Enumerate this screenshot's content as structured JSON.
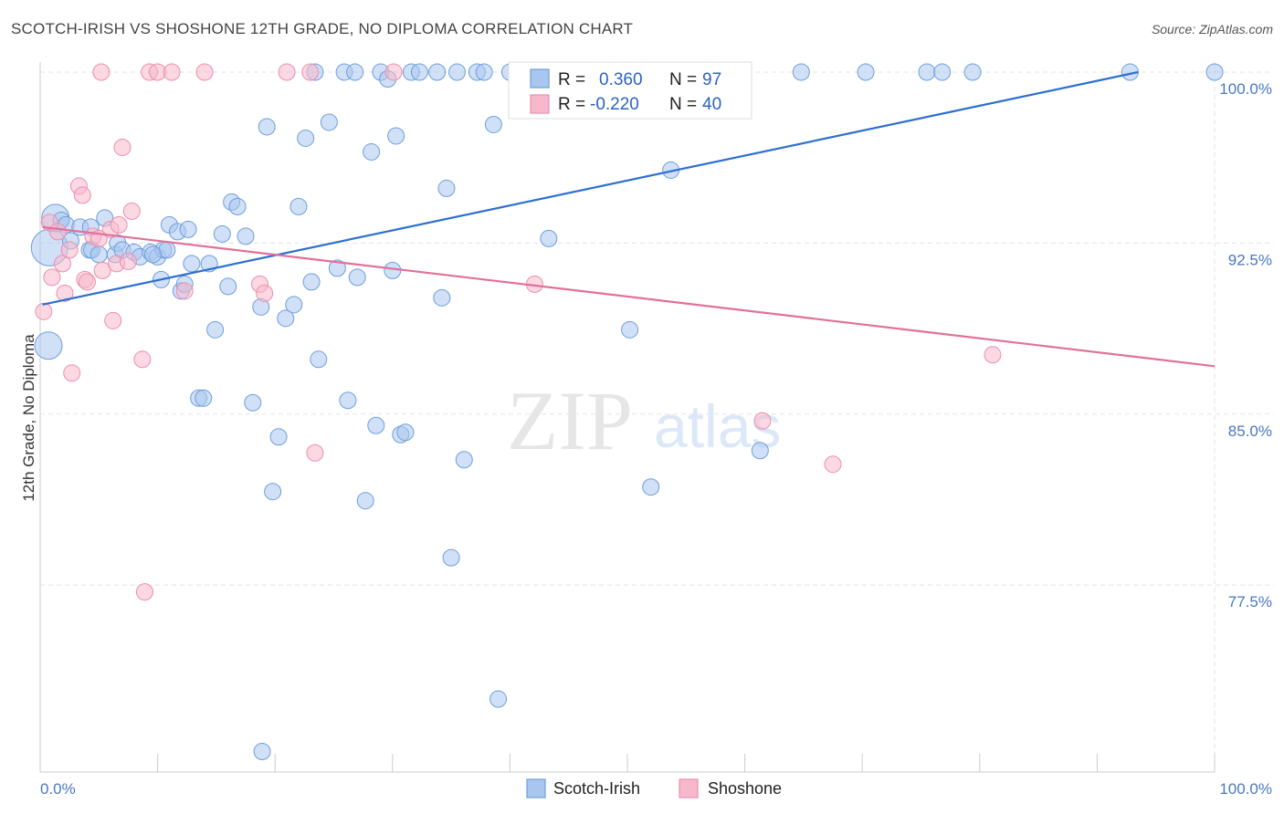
{
  "header": {
    "title": "SCOTCH-IRISH VS SHOSHONE 12TH GRADE, NO DIPLOMA CORRELATION CHART",
    "source": "Source: ZipAtlas.com"
  },
  "watermark": {
    "zip": "ZIP",
    "atlas": "atlas"
  },
  "legend": {
    "r_label": "R =",
    "n_label": "N =",
    "series": [
      {
        "name": "Scotch-Irish",
        "r": "0.360",
        "n": "97"
      },
      {
        "name": "Shoshone",
        "r": "-0.220",
        "n": "40"
      }
    ]
  },
  "colors": {
    "blue_fill": "#a9c6ee",
    "blue_stroke": "#6f9fdc",
    "blue_line": "#2d6fd0",
    "pink_fill": "#f7b8cb",
    "pink_stroke": "#ec8fae",
    "pink_line": "#e2709a",
    "tick_text": "#4a78c2",
    "grid": "#e3e3e3"
  },
  "chart_data": {
    "type": "scatter",
    "title": "SCOTCH-IRISH VS SHOSHONE 12TH GRADE, NO DIPLOMA CORRELATION CHART",
    "xlabel": "",
    "ylabel": "12th Grade, No Diploma",
    "xlim": [
      0,
      100
    ],
    "ylim": [
      70,
      101
    ],
    "x_tick_labels": [
      "0.0%",
      "100.0%"
    ],
    "y_ticks": [
      77.5,
      85.0,
      92.5,
      100.0
    ],
    "y_tick_labels": [
      "77.5%",
      "85.0%",
      "92.5%",
      "100.0%"
    ],
    "grid": true,
    "legend_position": "top-center",
    "series": [
      {
        "name": "Scotch-Irish",
        "color": "#a9c6ee",
        "trend": {
          "x": [
            0.2,
            93.5
          ],
          "y": [
            89.8,
            100.0
          ]
        },
        "points": [
          {
            "x": 0.8,
            "y": 92.3,
            "s": 3
          },
          {
            "x": 0.7,
            "y": 88.0,
            "s": 2
          },
          {
            "x": 1.3,
            "y": 93.6,
            "s": 2
          },
          {
            "x": 1.8,
            "y": 93.5,
            "s": 1
          },
          {
            "x": 2.2,
            "y": 93.3,
            "s": 1
          },
          {
            "x": 3.4,
            "y": 93.2,
            "s": 1
          },
          {
            "x": 4.3,
            "y": 93.2,
            "s": 1
          },
          {
            "x": 5.5,
            "y": 93.6,
            "s": 1
          },
          {
            "x": 4.2,
            "y": 92.2,
            "s": 1
          },
          {
            "x": 4.4,
            "y": 92.2,
            "s": 1
          },
          {
            "x": 6.4,
            "y": 92.0,
            "s": 1
          },
          {
            "x": 6.6,
            "y": 92.5,
            "s": 1
          },
          {
            "x": 7.0,
            "y": 92.2,
            "s": 1
          },
          {
            "x": 8.0,
            "y": 92.1,
            "s": 1
          },
          {
            "x": 8.5,
            "y": 91.9,
            "s": 1
          },
          {
            "x": 9.4,
            "y": 92.1,
            "s": 1
          },
          {
            "x": 10.0,
            "y": 91.9,
            "s": 1
          },
          {
            "x": 10.3,
            "y": 90.9,
            "s": 1
          },
          {
            "x": 10.5,
            "y": 92.2,
            "s": 1
          },
          {
            "x": 10.8,
            "y": 92.2,
            "s": 1
          },
          {
            "x": 11.0,
            "y": 93.3,
            "s": 1
          },
          {
            "x": 11.7,
            "y": 93.0,
            "s": 1
          },
          {
            "x": 12.0,
            "y": 90.4,
            "s": 1
          },
          {
            "x": 12.3,
            "y": 90.7,
            "s": 1
          },
          {
            "x": 12.6,
            "y": 93.1,
            "s": 1
          },
          {
            "x": 12.9,
            "y": 91.6,
            "s": 1
          },
          {
            "x": 14.4,
            "y": 91.6,
            "s": 1
          },
          {
            "x": 13.5,
            "y": 85.7,
            "s": 1
          },
          {
            "x": 13.9,
            "y": 85.7,
            "s": 1
          },
          {
            "x": 14.9,
            "y": 88.7,
            "s": 1
          },
          {
            "x": 15.5,
            "y": 92.9,
            "s": 1
          },
          {
            "x": 16.0,
            "y": 90.6,
            "s": 1
          },
          {
            "x": 16.3,
            "y": 94.3,
            "s": 1
          },
          {
            "x": 16.8,
            "y": 94.1,
            "s": 1
          },
          {
            "x": 17.5,
            "y": 92.8,
            "s": 1
          },
          {
            "x": 18.1,
            "y": 85.5,
            "s": 1
          },
          {
            "x": 18.8,
            "y": 89.7,
            "s": 1
          },
          {
            "x": 18.9,
            "y": 70.2,
            "s": 1
          },
          {
            "x": 19.3,
            "y": 97.6,
            "s": 1
          },
          {
            "x": 19.8,
            "y": 81.6,
            "s": 1
          },
          {
            "x": 20.3,
            "y": 84.0,
            "s": 1
          },
          {
            "x": 20.9,
            "y": 89.2,
            "s": 1
          },
          {
            "x": 21.6,
            "y": 89.8,
            "s": 1
          },
          {
            "x": 22.0,
            "y": 94.1,
            "s": 1
          },
          {
            "x": 22.6,
            "y": 97.1,
            "s": 1
          },
          {
            "x": 23.1,
            "y": 90.8,
            "s": 1
          },
          {
            "x": 23.4,
            "y": 100.0,
            "s": 1
          },
          {
            "x": 23.7,
            "y": 87.4,
            "s": 1
          },
          {
            "x": 24.6,
            "y": 97.8,
            "s": 1
          },
          {
            "x": 25.3,
            "y": 91.4,
            "s": 1
          },
          {
            "x": 25.9,
            "y": 100.0,
            "s": 1
          },
          {
            "x": 26.2,
            "y": 85.6,
            "s": 1
          },
          {
            "x": 26.8,
            "y": 100.0,
            "s": 1
          },
          {
            "x": 27.0,
            "y": 91.0,
            "s": 1
          },
          {
            "x": 28.2,
            "y": 96.5,
            "s": 1
          },
          {
            "x": 27.7,
            "y": 81.2,
            "s": 1
          },
          {
            "x": 28.6,
            "y": 84.5,
            "s": 1
          },
          {
            "x": 29.0,
            "y": 100.0,
            "s": 1
          },
          {
            "x": 29.6,
            "y": 99.7,
            "s": 1
          },
          {
            "x": 30.0,
            "y": 91.3,
            "s": 1
          },
          {
            "x": 30.7,
            "y": 84.1,
            "s": 1
          },
          {
            "x": 31.1,
            "y": 84.2,
            "s": 1
          },
          {
            "x": 30.3,
            "y": 97.2,
            "s": 1
          },
          {
            "x": 31.6,
            "y": 100.0,
            "s": 1
          },
          {
            "x": 32.3,
            "y": 100.0,
            "s": 1
          },
          {
            "x": 33.8,
            "y": 100.0,
            "s": 1
          },
          {
            "x": 34.2,
            "y": 90.1,
            "s": 1
          },
          {
            "x": 34.6,
            "y": 94.9,
            "s": 1
          },
          {
            "x": 35.0,
            "y": 78.7,
            "s": 1
          },
          {
            "x": 35.5,
            "y": 100.0,
            "s": 1
          },
          {
            "x": 36.1,
            "y": 83.0,
            "s": 1
          },
          {
            "x": 37.2,
            "y": 100.0,
            "s": 1
          },
          {
            "x": 37.8,
            "y": 100.0,
            "s": 1
          },
          {
            "x": 38.6,
            "y": 97.7,
            "s": 1
          },
          {
            "x": 39.0,
            "y": 72.5,
            "s": 1
          },
          {
            "x": 40.0,
            "y": 100.0,
            "s": 1
          },
          {
            "x": 42.2,
            "y": 100.0,
            "s": 1
          },
          {
            "x": 43.3,
            "y": 92.7,
            "s": 1
          },
          {
            "x": 44.2,
            "y": 100.0,
            "s": 1
          },
          {
            "x": 45.8,
            "y": 100.0,
            "s": 1
          },
          {
            "x": 47.5,
            "y": 100.0,
            "s": 1
          },
          {
            "x": 50.2,
            "y": 88.7,
            "s": 1
          },
          {
            "x": 52.0,
            "y": 81.8,
            "s": 1
          },
          {
            "x": 53.7,
            "y": 95.7,
            "s": 1
          },
          {
            "x": 56.0,
            "y": 100.0,
            "s": 1
          },
          {
            "x": 57.5,
            "y": 100.0,
            "s": 1
          },
          {
            "x": 61.3,
            "y": 83.4,
            "s": 1
          },
          {
            "x": 64.8,
            "y": 100.0,
            "s": 1
          },
          {
            "x": 70.3,
            "y": 100.0,
            "s": 1
          },
          {
            "x": 75.5,
            "y": 100.0,
            "s": 1
          },
          {
            "x": 76.8,
            "y": 100.0,
            "s": 1
          },
          {
            "x": 79.4,
            "y": 100.0,
            "s": 1
          },
          {
            "x": 92.8,
            "y": 100.0,
            "s": 1
          },
          {
            "x": 100.0,
            "y": 100.0,
            "s": 1
          },
          {
            "x": 9.6,
            "y": 92.0,
            "s": 1
          },
          {
            "x": 2.6,
            "y": 92.6,
            "s": 1
          },
          {
            "x": 5.0,
            "y": 92.0,
            "s": 1
          }
        ]
      },
      {
        "name": "Shoshone",
        "color": "#f7b8cb",
        "trend": {
          "x": [
            0.2,
            100.0
          ],
          "y": [
            93.2,
            87.1
          ]
        },
        "points": [
          {
            "x": 0.3,
            "y": 89.5,
            "s": 1
          },
          {
            "x": 0.8,
            "y": 93.4,
            "s": 1
          },
          {
            "x": 1.0,
            "y": 91.0,
            "s": 1
          },
          {
            "x": 1.5,
            "y": 93.0,
            "s": 1
          },
          {
            "x": 1.9,
            "y": 91.6,
            "s": 1
          },
          {
            "x": 2.1,
            "y": 90.3,
            "s": 1
          },
          {
            "x": 2.5,
            "y": 92.2,
            "s": 1
          },
          {
            "x": 2.7,
            "y": 86.8,
            "s": 1
          },
          {
            "x": 3.3,
            "y": 95.0,
            "s": 1
          },
          {
            "x": 3.6,
            "y": 94.6,
            "s": 1
          },
          {
            "x": 3.8,
            "y": 90.9,
            "s": 1
          },
          {
            "x": 4.0,
            "y": 90.8,
            "s": 1
          },
          {
            "x": 4.5,
            "y": 92.8,
            "s": 1
          },
          {
            "x": 5.0,
            "y": 92.7,
            "s": 1
          },
          {
            "x": 5.3,
            "y": 91.3,
            "s": 1
          },
          {
            "x": 5.2,
            "y": 100.0,
            "s": 1
          },
          {
            "x": 6.0,
            "y": 93.1,
            "s": 1
          },
          {
            "x": 6.2,
            "y": 89.1,
            "s": 1
          },
          {
            "x": 6.5,
            "y": 91.6,
            "s": 1
          },
          {
            "x": 6.7,
            "y": 93.3,
            "s": 1
          },
          {
            "x": 7.0,
            "y": 96.7,
            "s": 1
          },
          {
            "x": 7.5,
            "y": 91.7,
            "s": 1
          },
          {
            "x": 7.8,
            "y": 93.9,
            "s": 1
          },
          {
            "x": 8.7,
            "y": 87.4,
            "s": 1
          },
          {
            "x": 8.9,
            "y": 77.2,
            "s": 1
          },
          {
            "x": 9.3,
            "y": 100.0,
            "s": 1
          },
          {
            "x": 10.0,
            "y": 100.0,
            "s": 1
          },
          {
            "x": 11.2,
            "y": 100.0,
            "s": 1
          },
          {
            "x": 12.3,
            "y": 90.4,
            "s": 1
          },
          {
            "x": 14.0,
            "y": 100.0,
            "s": 1
          },
          {
            "x": 18.7,
            "y": 90.7,
            "s": 1
          },
          {
            "x": 19.1,
            "y": 90.3,
            "s": 1
          },
          {
            "x": 21.0,
            "y": 100.0,
            "s": 1
          },
          {
            "x": 23.0,
            "y": 100.0,
            "s": 1
          },
          {
            "x": 23.4,
            "y": 83.3,
            "s": 1
          },
          {
            "x": 30.1,
            "y": 100.0,
            "s": 1
          },
          {
            "x": 42.1,
            "y": 90.7,
            "s": 1
          },
          {
            "x": 61.5,
            "y": 84.7,
            "s": 1
          },
          {
            "x": 67.5,
            "y": 82.8,
            "s": 1
          },
          {
            "x": 81.1,
            "y": 87.6,
            "s": 1
          }
        ]
      }
    ]
  }
}
